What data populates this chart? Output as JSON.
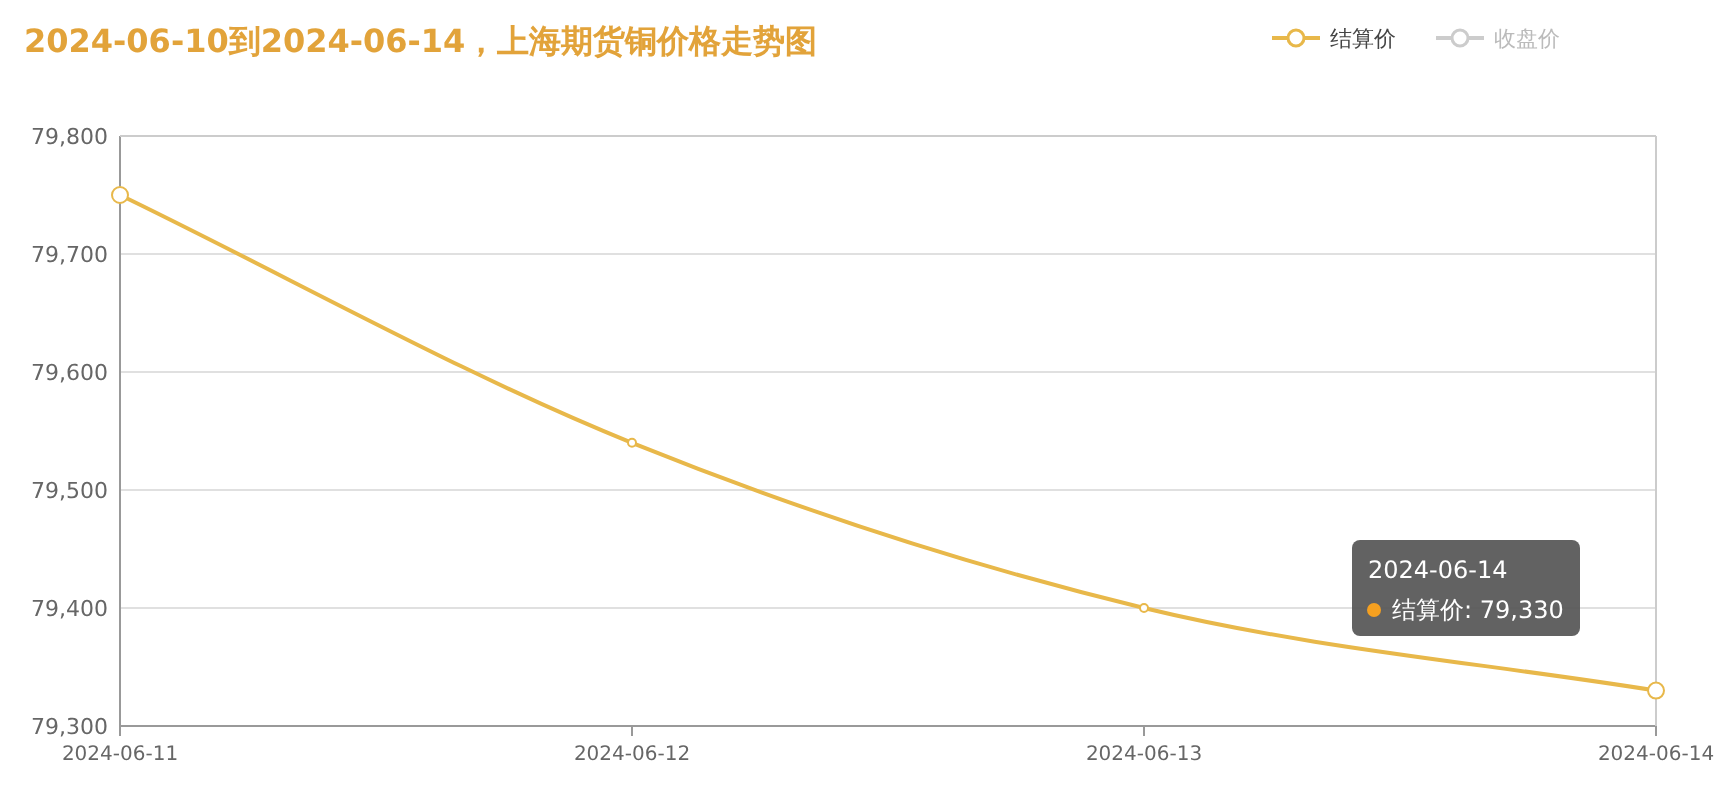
{
  "chart_data": {
    "type": "line",
    "title": "2024-06-10到2024-06-14，上海期货铜价格走势图",
    "categories": [
      "2024-06-11",
      "2024-06-12",
      "2024-06-13",
      "2024-06-14"
    ],
    "series": [
      {
        "name": "结算价",
        "color": "#e8b84a",
        "values": [
          79750,
          79540,
          79400,
          79330
        ]
      },
      {
        "name": "收盘价",
        "color": "#cccccc",
        "values": [
          null,
          null,
          null,
          null
        ]
      }
    ],
    "ylim": [
      79300,
      79800
    ],
    "yticks": [
      {
        "value": 79300,
        "label": "79,300"
      },
      {
        "value": 79400,
        "label": "79,400"
      },
      {
        "value": 79500,
        "label": "79,500"
      },
      {
        "value": 79600,
        "label": "79,600"
      },
      {
        "value": 79700,
        "label": "79,700"
      },
      {
        "value": 79800,
        "label": "79,800"
      }
    ],
    "grid": "y",
    "legend": "top right",
    "marker": "circle",
    "annotations": [
      "2024-06-14\n结算价: 79,330"
    ]
  }
}
